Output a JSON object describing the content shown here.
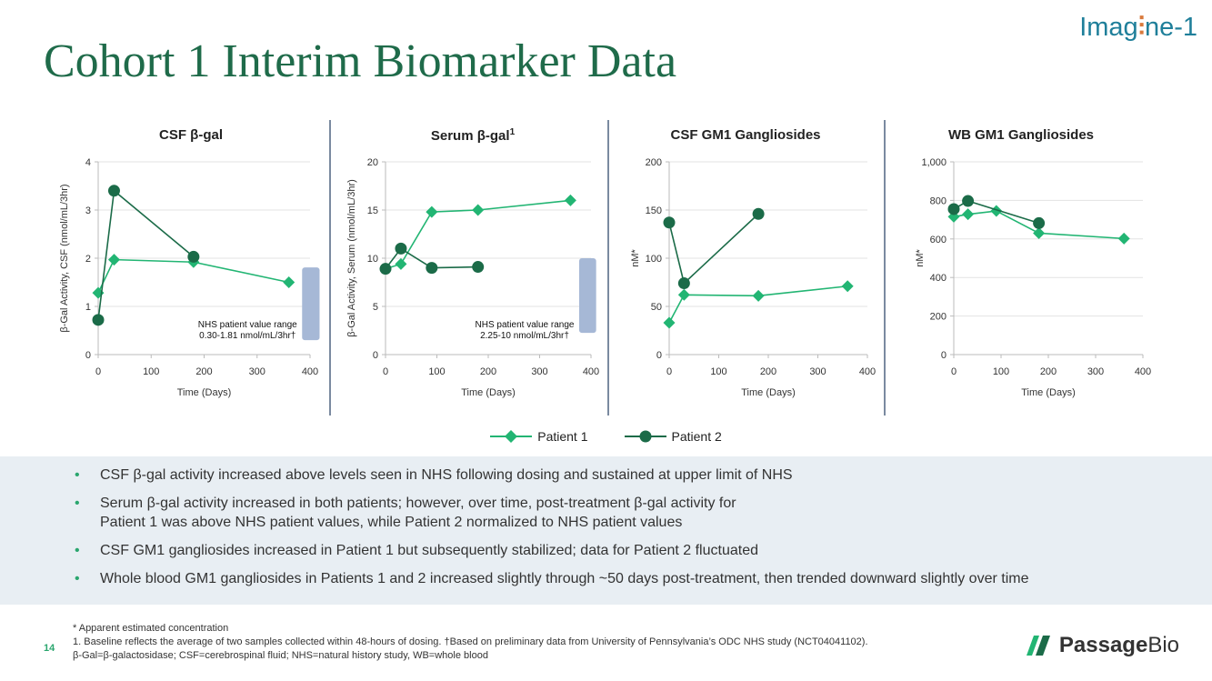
{
  "slide": {
    "title": "Cohort 1 Interim Biomarker Data",
    "logo_top_prefix": "Imag",
    "logo_top_suffix": "ne-1",
    "logo_bottom_bold": "Passage",
    "logo_bottom_light": "Bio",
    "page_number": "14",
    "colors": {
      "patient1": "#22b573",
      "patient2": "#1b6b48",
      "nhs_band": "#a6b8d6",
      "title": "#1f6b4a"
    }
  },
  "legend": [
    {
      "label": "Patient 1",
      "marker": "diamond"
    },
    {
      "label": "Patient 2",
      "marker": "circle"
    }
  ],
  "chart_data": [
    {
      "type": "line",
      "title": "CSF β-gal",
      "xlabel": "Time (Days)",
      "ylabel": "β-Gal Activity, CSF (nmol/mL/3hr)",
      "xlim": [
        0,
        400
      ],
      "ylim": [
        0,
        4
      ],
      "xticks": [
        0,
        100,
        200,
        300,
        400
      ],
      "yticks": [
        0,
        1,
        2,
        3,
        4
      ],
      "ytick_labels": [
        "0",
        "1",
        "2",
        "3",
        "4"
      ],
      "series": [
        {
          "name": "Patient 1",
          "x": [
            0,
            30,
            180,
            360
          ],
          "y": [
            1.28,
            1.97,
            1.92,
            1.5
          ]
        },
        {
          "name": "Patient 2",
          "x": [
            0,
            30,
            180
          ],
          "y": [
            0.72,
            3.4,
            2.03
          ]
        }
      ],
      "nhs_range": {
        "low": 0.3,
        "high": 1.81,
        "x_from": 385,
        "x_to": 418
      },
      "note_lines": [
        "NHS patient value range",
        "0.30-1.81 nmol/mL/3hr†"
      ]
    },
    {
      "type": "line",
      "title": "Serum β-gal",
      "title_sup": "1",
      "xlabel": "Time (Days)",
      "ylabel": "β-Gal Activity, Serum (nmol/mL/3hr)",
      "xlim": [
        0,
        400
      ],
      "ylim": [
        0,
        20
      ],
      "xticks": [
        0,
        100,
        200,
        300,
        400
      ],
      "yticks": [
        0,
        5,
        10,
        15,
        20
      ],
      "ytick_labels": [
        "0",
        "5",
        "10",
        "15",
        "20"
      ],
      "series": [
        {
          "name": "Patient 1",
          "x": [
            0,
            30,
            90,
            180,
            360
          ],
          "y": [
            8.9,
            9.4,
            14.8,
            15.0,
            16.0
          ]
        },
        {
          "name": "Patient 2",
          "x": [
            0,
            30,
            90,
            180
          ],
          "y": [
            8.9,
            11.0,
            9.0,
            9.1
          ]
        }
      ],
      "nhs_range": {
        "low": 2.25,
        "high": 10,
        "x_from": 377,
        "x_to": 410
      },
      "note_lines": [
        "NHS patient value range",
        "2.25-10 nmol/mL/3hr†"
      ]
    },
    {
      "type": "line",
      "title": "CSF GM1 Gangliosides",
      "xlabel": "Time (Days)",
      "ylabel": "nM*",
      "xlim": [
        0,
        400
      ],
      "ylim": [
        0,
        200
      ],
      "xticks": [
        0,
        100,
        200,
        300,
        400
      ],
      "yticks": [
        0,
        50,
        100,
        150,
        200
      ],
      "ytick_labels": [
        "0",
        "50",
        "100",
        "150",
        "200"
      ],
      "series": [
        {
          "name": "Patient 1",
          "x": [
            0,
            30,
            180,
            360
          ],
          "y": [
            33,
            62,
            61,
            71
          ]
        },
        {
          "name": "Patient 2",
          "x": [
            0,
            30,
            180
          ],
          "y": [
            137,
            74,
            146
          ]
        }
      ]
    },
    {
      "type": "line",
      "title": "WB GM1 Gangliosides",
      "xlabel": "Time (Days)",
      "ylabel": "nM*",
      "xlim": [
        0,
        400
      ],
      "ylim": [
        0,
        1000
      ],
      "xticks": [
        0,
        100,
        200,
        300,
        400
      ],
      "yticks": [
        0,
        200,
        400,
        600,
        800,
        1000
      ],
      "ytick_labels": [
        "0",
        "200",
        "400",
        "600",
        "800",
        "1,000"
      ],
      "series": [
        {
          "name": "Patient 1",
          "x": [
            0,
            30,
            90,
            180,
            360
          ],
          "y": [
            715,
            728,
            745,
            630,
            602
          ]
        },
        {
          "name": "Patient 2",
          "x": [
            0,
            30,
            180
          ],
          "y": [
            755,
            797,
            682
          ]
        }
      ]
    }
  ],
  "bullets": [
    [
      "CSF β-gal activity increased above levels seen in NHS following dosing and sustained at upper limit of NHS"
    ],
    [
      "Serum β-gal activity increased in both patients; however, over time, post-treatment β-gal activity for",
      "Patient 1 was above NHS patient values, while Patient 2 normalized to NHS patient values"
    ],
    [
      "CSF GM1 gangliosides increased in Patient 1 but subsequently stabilized; data for Patient 2 fluctuated"
    ],
    [
      "Whole blood GM1 gangliosides in Patients 1 and 2 increased slightly through ~50 days post-treatment, then trended downward slightly over time"
    ]
  ],
  "footnotes": [
    "* Apparent estimated concentration",
    "1. Baseline reflects the average of two samples collected within 48-hours of dosing. †Based on preliminary data from University of Pennsylvania’s ODC NHS study (NCT04041102).",
    "β-Gal=β-galactosidase; CSF=cerebrospinal fluid; NHS=natural history study, WB=whole blood"
  ]
}
